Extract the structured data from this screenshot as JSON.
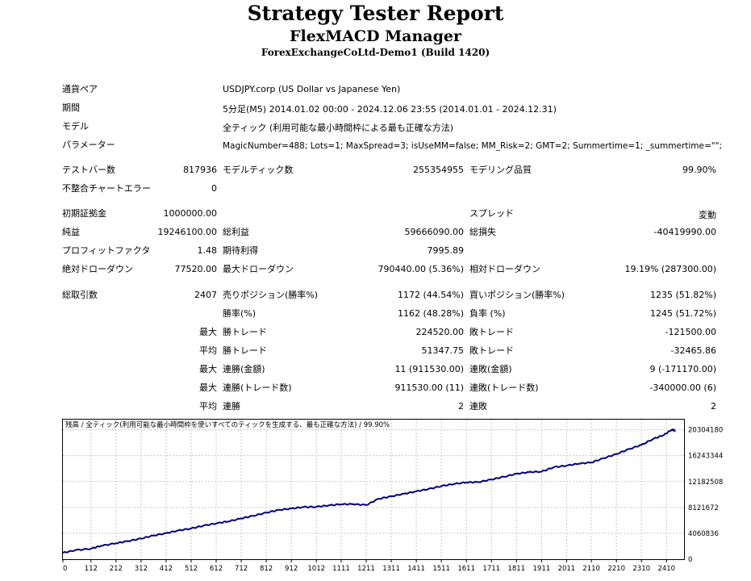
{
  "title": "Strategy Tester Report",
  "subtitle": "FlexMACD Manager",
  "server": "ForexExchangeCoLtd-Demo1 (Build 1420)",
  "info": [
    {
      "label": "通貨ペア",
      "value": "USDJPY.corp (US Dollar vs Japanese Yen)"
    },
    {
      "label": "期間",
      "value": "5分足(M5) 2014.01.02 00:00 - 2024.12.06 23:55 (2014.01.01 - 2024.12.31)"
    },
    {
      "label": "モデル",
      "value": "全ティック (利用可能な最小時間枠による最も正確な方法)"
    },
    {
      "label": "パラメーター",
      "value": "MagicNumber=488; Lots=1; MaxSpread=3; isUseMM=false; MM_Risk=2; GMT=2; Summertime=1; _summertime=\"\";"
    }
  ],
  "stats": {
    "test_bars_label": "テストバー数",
    "test_bars": "817936",
    "model_ticks_label": "モデルティック数",
    "model_ticks": "255354955",
    "model_quality_label": "モデリング品質",
    "model_quality": "99.90%",
    "mismatch_label": "不整合チャートエラー",
    "mismatch": "0",
    "initial_deposit_label": "初期証拠金",
    "initial_deposit": "1000000.00",
    "spread_label": "スプレッド",
    "spread": "変動",
    "net_profit_label": "純益",
    "net_profit": "19246100.00",
    "gross_profit_label": "総利益",
    "gross_profit": "59666090.00",
    "gross_loss_label": "総損失",
    "gross_loss": "-40419990.00",
    "profit_factor_label": "プロフィットファクタ",
    "profit_factor": "1.48",
    "expected_payoff_label": "期待利得",
    "expected_payoff": "7995.89",
    "abs_drawdown_label": "絶対ドローダウン",
    "abs_drawdown": "77520.00",
    "max_drawdown_label": "最大ドローダウン",
    "max_drawdown": "790440.00 (5.36%)",
    "rel_drawdown_label": "相対ドローダウン",
    "rel_drawdown": "19.19% (287300.00)",
    "total_trades_label": "総取引数",
    "total_trades": "2407",
    "short_label": "売りポジション(勝率%)",
    "short": "1172 (44.54%)",
    "long_label": "買いポジション(勝率%)",
    "long": "1235 (51.82%)",
    "win_pct_label": "勝率(%)",
    "win_pct": "1162 (48.28%)",
    "loss_pct_label": "負率 (%)",
    "loss_pct": "1245 (51.72%)",
    "r1_pre": "最大",
    "largest_win_label": "勝トレード",
    "largest_win": "224520.00",
    "largest_loss_label": "敗トレード",
    "largest_loss": "-121500.00",
    "r2_pre": "平均",
    "avg_win_label": "勝トレード",
    "avg_win": "51347.75",
    "avg_loss_label": "敗トレード",
    "avg_loss": "-32465.86",
    "r3_pre": "最大",
    "max_cons_wins_label": "連勝(金額)",
    "max_cons_wins": "11 (911530.00)",
    "max_cons_losses_label": "連敗(金額)",
    "max_cons_losses": "9 (-171170.00)",
    "r4_pre": "最大",
    "max_cons_profit_label": "連勝(トレード数)",
    "max_cons_profit": "911530.00 (11)",
    "max_cons_loss_label": "連敗(トレード数)",
    "max_cons_loss": "-340000.00 (6)",
    "r5_pre": "平均",
    "avg_cons_wins_label": "連勝",
    "avg_cons_wins": "2",
    "avg_cons_losses_label": "連敗",
    "avg_cons_losses": "2"
  },
  "chart_data": {
    "type": "line",
    "title": "残高 / 全ティック(利用可能な最小時間枠を使いすべてのティックを生成する、最も正確な方法) / 99.90%",
    "x_ticks": [
      0,
      112,
      212,
      312,
      412,
      512,
      612,
      712,
      812,
      912,
      1012,
      1111,
      1211,
      1311,
      1411,
      1511,
      1611,
      1711,
      1811,
      1911,
      2011,
      2110,
      2210,
      2310,
      2410
    ],
    "y_ticks": [
      0,
      4060836,
      8121672,
      12182508,
      16243344,
      20304180
    ],
    "y_tick_labels": [
      "0",
      "4060836",
      "8121672",
      "12182508",
      "16243344",
      "20304180"
    ],
    "xlim": [
      0,
      2480
    ],
    "ylim": [
      0,
      21900000
    ],
    "series": [
      {
        "color": "#000080",
        "x": [
          0,
          50,
          112,
          150,
          212,
          260,
          312,
          360,
          412,
          460,
          512,
          560,
          612,
          660,
          712,
          760,
          812,
          860,
          912,
          960,
          1012,
          1060,
          1111,
          1160,
          1211,
          1260,
          1311,
          1360,
          1411,
          1460,
          1511,
          1560,
          1611,
          1660,
          1711,
          1760,
          1811,
          1860,
          1911,
          1960,
          2011,
          2060,
          2110,
          2160,
          2210,
          2260,
          2310,
          2360,
          2400,
          2430,
          2445
        ],
        "y": [
          1000000,
          1420000,
          1650000,
          2080000,
          2500000,
          2850000,
          3240000,
          3700000,
          4080000,
          4500000,
          4820000,
          5250000,
          5620000,
          5930000,
          6400000,
          6800000,
          7300000,
          7720000,
          7950000,
          8180000,
          8210000,
          8440000,
          8620000,
          8640000,
          8500000,
          9470000,
          9860000,
          10250000,
          10640000,
          11010000,
          11470000,
          11800000,
          12050000,
          12100000,
          12500000,
          12930000,
          13400000,
          13660000,
          13740000,
          14440000,
          14680000,
          15000000,
          15180000,
          15850000,
          16500000,
          17270000,
          17940000,
          18920000,
          19500000,
          20304180,
          20200000
        ]
      }
    ]
  }
}
